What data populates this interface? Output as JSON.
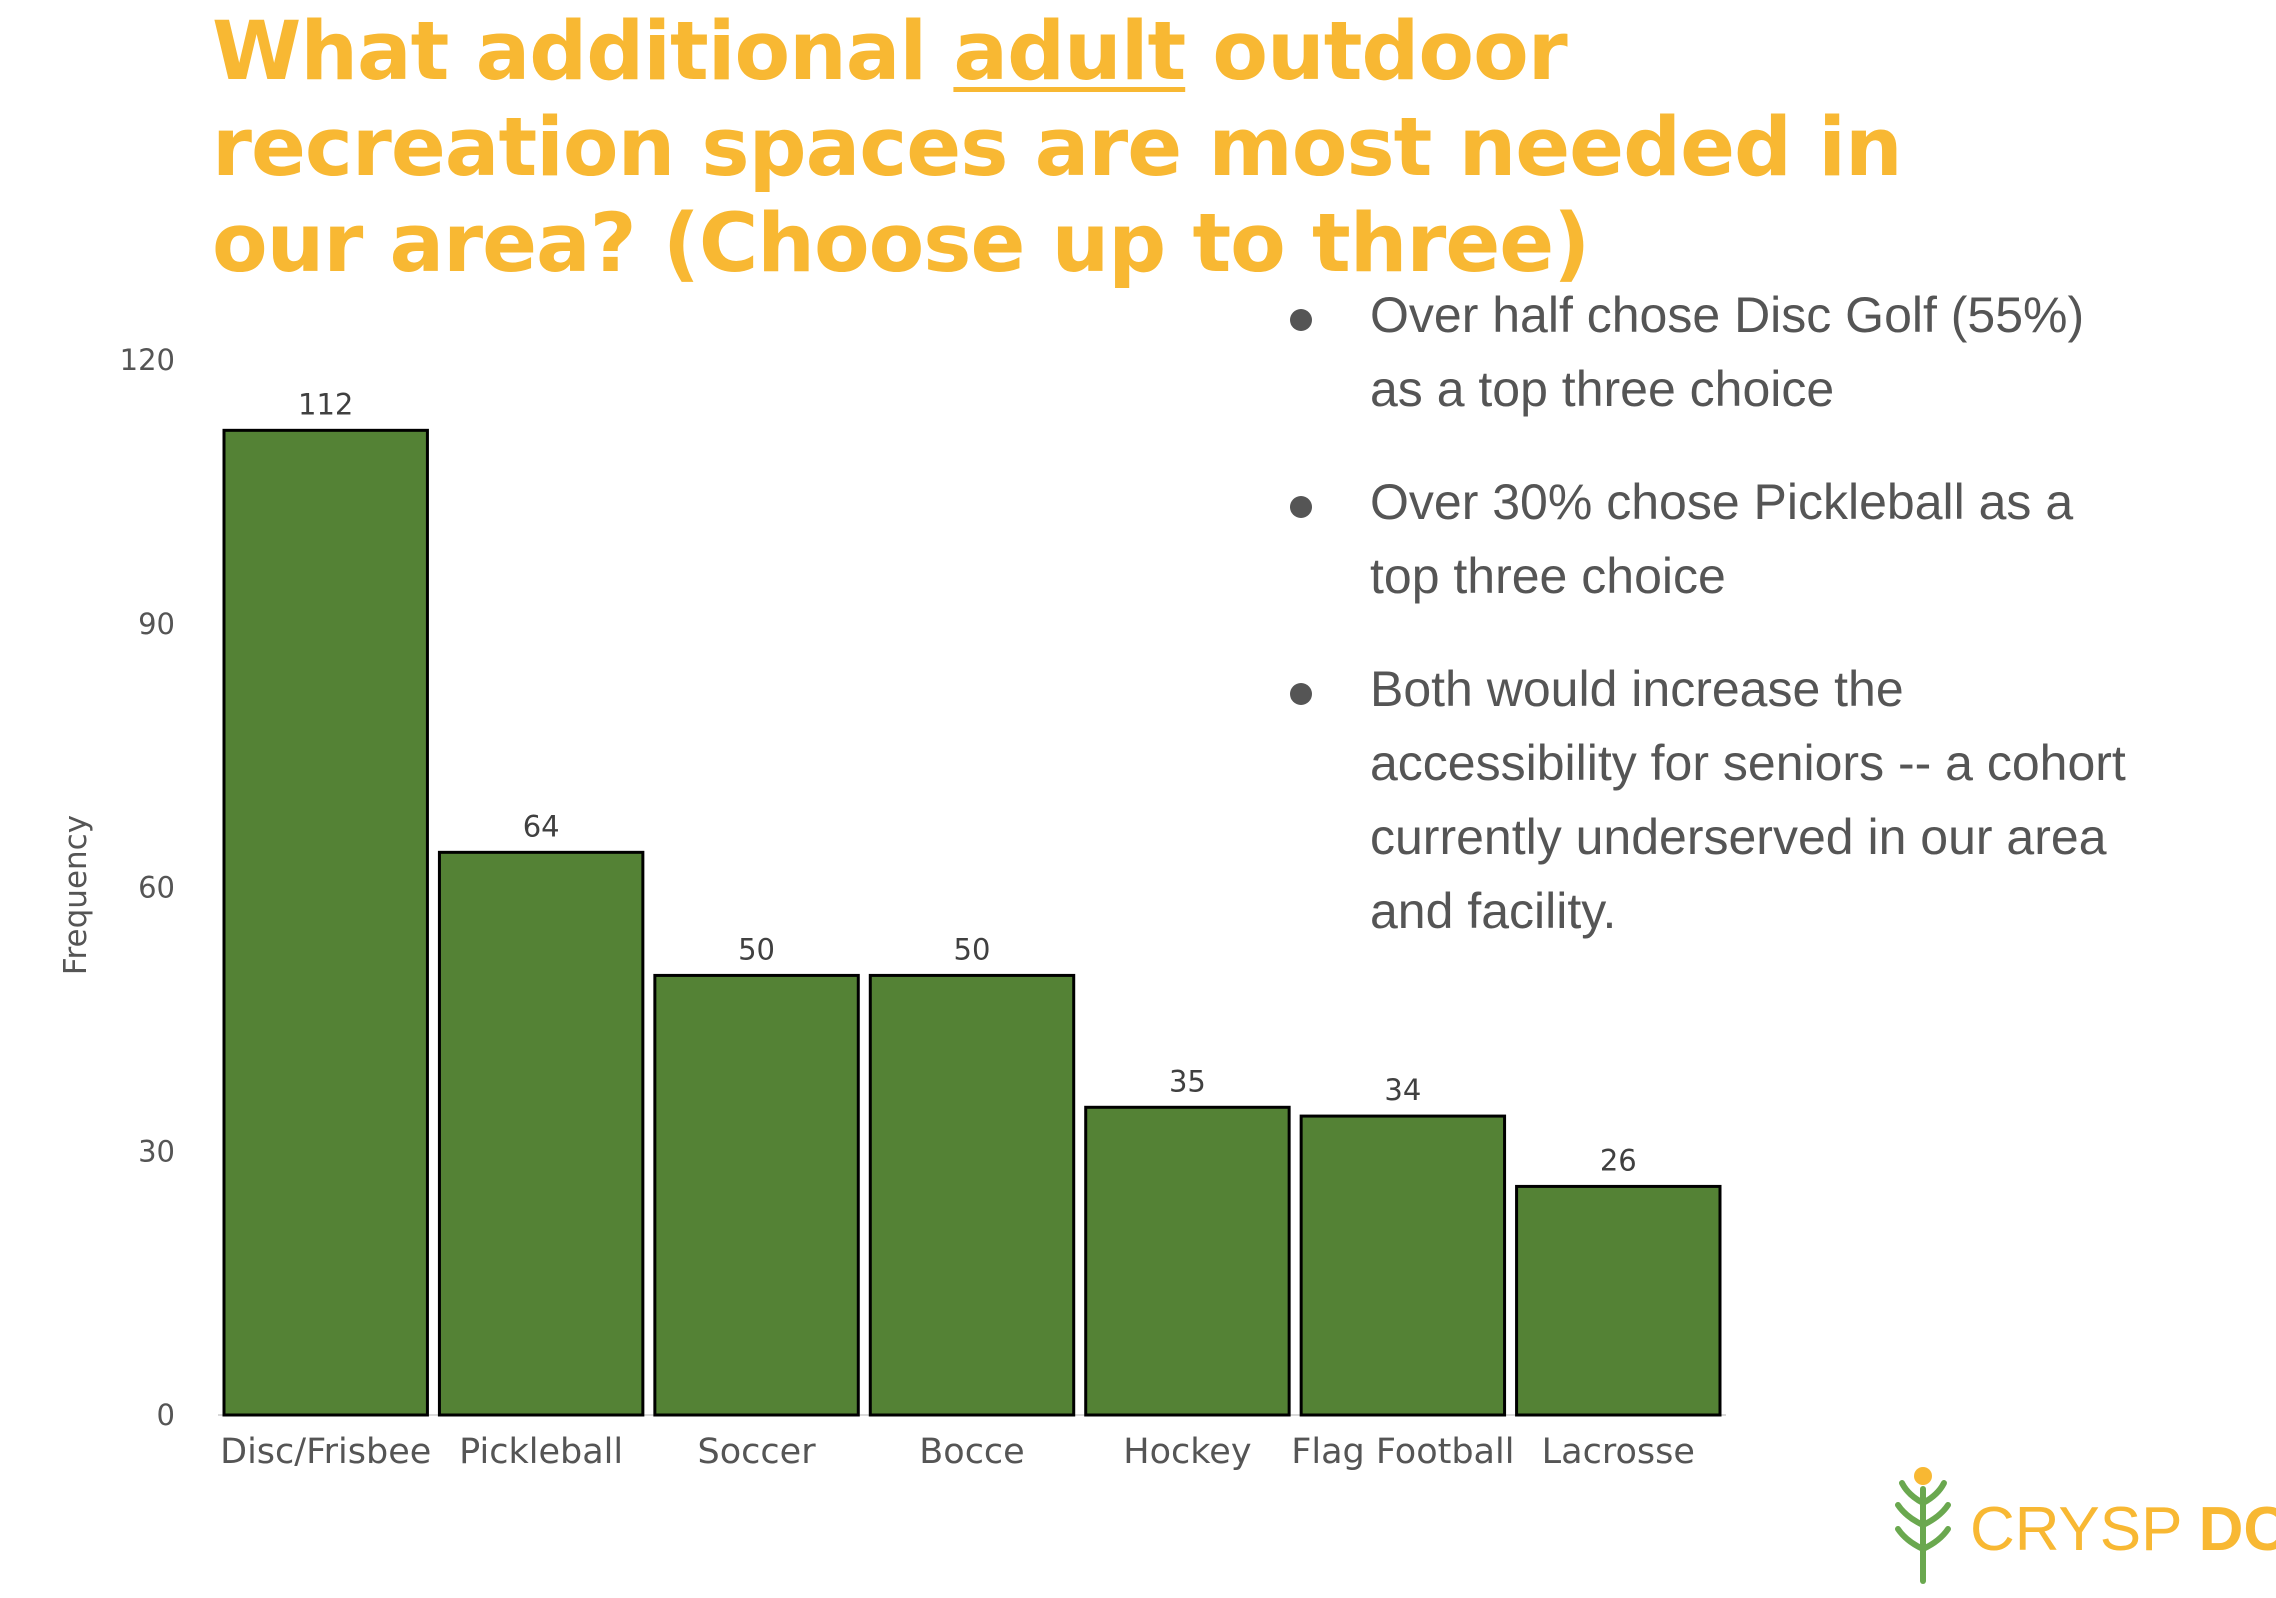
{
  "title": {
    "pre": "What additional ",
    "emphasis": "adult",
    "post": " outdoor recreation spaces are most needed in our area? (Choose up to three)"
  },
  "bullets": [
    "Over half chose Disc Golf (55%) as a top three choice",
    "Over 30% chose Pickleball as a top three choice",
    "Both would increase the accessibility for seniors -- a cohort currently underserved in our area and facility."
  ],
  "logo": {
    "part1": "CRYSP",
    "part2": "DC"
  },
  "colors": {
    "title": "#F8B833",
    "bar_fill": "#548235",
    "bar_stroke": "#000000",
    "text": "#555555",
    "logo_green": "#6AA84F",
    "logo_orange": "#F8B833"
  },
  "chart_data": {
    "type": "bar",
    "title": "",
    "xlabel": "",
    "ylabel": "Frequency",
    "categories": [
      "Disc/Frisbee",
      "Pickleball",
      "Soccer",
      "Bocce",
      "Hockey",
      "Flag Football",
      "Lacrosse"
    ],
    "values": [
      112,
      64,
      50,
      50,
      35,
      34,
      26
    ],
    "ylim": [
      0,
      120
    ],
    "yticks": [
      0,
      30,
      60,
      90,
      120
    ],
    "grid": false,
    "data_labels": true
  }
}
